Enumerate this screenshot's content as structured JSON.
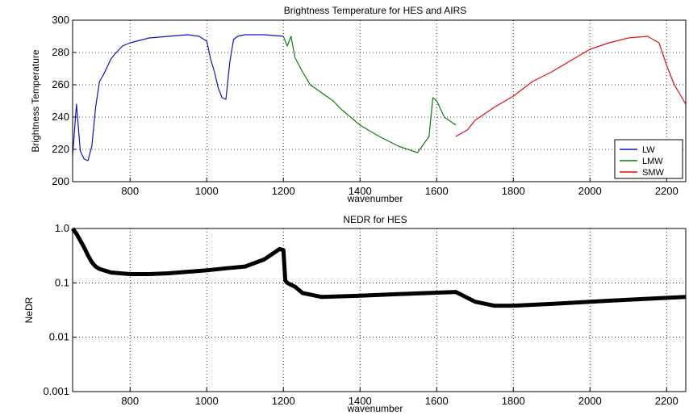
{
  "chart_data": [
    {
      "type": "line",
      "title": "Brightness Temperature for HES and AIRS",
      "xlabel": "wavenumber",
      "ylabel": "Brightness Temperature",
      "xlim": [
        650,
        2250
      ],
      "ylim": [
        200,
        300
      ],
      "xticks": [
        800,
        1000,
        1200,
        1400,
        1600,
        1800,
        2000,
        2200
      ],
      "yticks": [
        200,
        220,
        240,
        260,
        280,
        300
      ],
      "grid": true,
      "legend_position": "bottom-right",
      "colors": {
        "LW": "#1010cc",
        "LMW": "#0a7f0a",
        "SMW": "#dd1111"
      },
      "series": [
        {
          "name": "LW",
          "x": [
            650,
            660,
            670,
            680,
            690,
            700,
            710,
            720,
            730,
            740,
            750,
            760,
            780,
            800,
            850,
            900,
            950,
            980,
            1000,
            1010,
            1020,
            1030,
            1040,
            1050,
            1060,
            1070,
            1080,
            1100,
            1150,
            1200
          ],
          "y": [
            216,
            248,
            219,
            214,
            213,
            222,
            246,
            262,
            266,
            271,
            276,
            279,
            284,
            286,
            289,
            290,
            291,
            290,
            287,
            276,
            268,
            258,
            252,
            251,
            274,
            288,
            290,
            291,
            291,
            290
          ]
        },
        {
          "name": "LMW",
          "x": [
            1200,
            1210,
            1220,
            1230,
            1250,
            1270,
            1300,
            1330,
            1350,
            1400,
            1450,
            1500,
            1550,
            1580,
            1590,
            1600,
            1620,
            1650
          ],
          "y": [
            290,
            284,
            290,
            277,
            268,
            260,
            255,
            250,
            245,
            235,
            228,
            222,
            218,
            228,
            252,
            250,
            240,
            235
          ]
        },
        {
          "name": "SMW",
          "x": [
            1650,
            1680,
            1700,
            1750,
            1800,
            1850,
            1900,
            1950,
            2000,
            2050,
            2100,
            2150,
            2180,
            2200,
            2220,
            2240,
            2250
          ],
          "y": [
            228,
            232,
            238,
            246,
            253,
            262,
            268,
            275,
            282,
            286,
            289,
            290,
            286,
            272,
            260,
            252,
            248
          ]
        }
      ]
    },
    {
      "type": "line",
      "title": "NEDR for HES",
      "xlabel": "wavenumber",
      "ylabel": "NeDR",
      "yscale": "log",
      "xlim": [
        650,
        2250
      ],
      "ylim": [
        0.001,
        1
      ],
      "xticks": [
        800,
        1000,
        1200,
        1400,
        1600,
        1800,
        2000,
        2200
      ],
      "yticks": [
        0.001,
        0.01,
        0.1,
        1
      ],
      "ytick_labels": [
        "0.001",
        "0.01",
        "0.1",
        "1.0"
      ],
      "grid": true,
      "color": "#000000",
      "series": [
        {
          "x": [
            650,
            660,
            670,
            680,
            690,
            700,
            710,
            720,
            750,
            800,
            850,
            900,
            950,
            1000,
            1050,
            1100,
            1150,
            1190,
            1200,
            1205,
            1210,
            1230,
            1250,
            1300,
            1400,
            1500,
            1600,
            1650,
            1700,
            1750,
            1800,
            1900,
            2000,
            2100,
            2200,
            2250
          ],
          "y": [
            1.0,
            0.8,
            0.6,
            0.45,
            0.32,
            0.24,
            0.2,
            0.18,
            0.155,
            0.145,
            0.145,
            0.15,
            0.16,
            0.17,
            0.185,
            0.2,
            0.27,
            0.42,
            0.4,
            0.11,
            0.1,
            0.085,
            0.065,
            0.055,
            0.058,
            0.062,
            0.066,
            0.068,
            0.045,
            0.038,
            0.038,
            0.041,
            0.045,
            0.049,
            0.053,
            0.055
          ]
        }
      ]
    }
  ]
}
